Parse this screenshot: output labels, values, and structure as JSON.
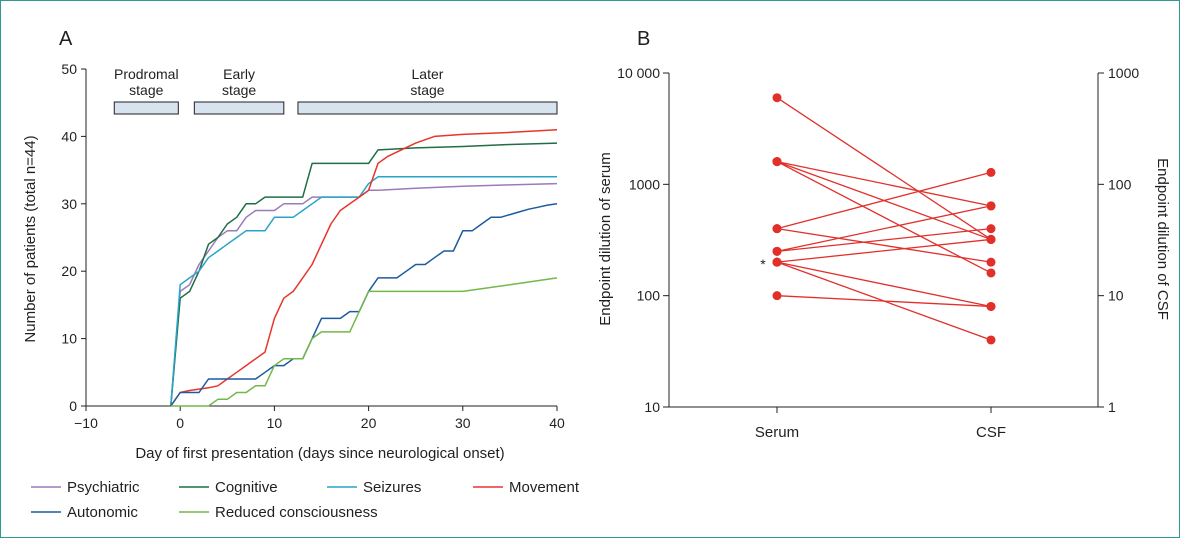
{
  "colors": {
    "Psychiatric": "#9b7bb8",
    "Cognitive": "#1f6e45",
    "Seizures": "#2aa3c9",
    "Movement": "#e8352b",
    "Autonomic": "#1d5a9e",
    "Reduced consciousness": "#72b84a",
    "stage_fill": "#d7e3ee",
    "panel_b_red": "#e1302a"
  },
  "chart_data": [
    {
      "panel": "A",
      "type": "line",
      "xlabel": "Day of first presentation (days since neurological onset)",
      "ylabel": "Number of patients (total n=44)",
      "xlim": [
        -10,
        40
      ],
      "ylim": [
        0,
        50
      ],
      "xticks": [
        -10,
        0,
        10,
        20,
        30,
        40
      ],
      "xtick_labels": [
        "−10",
        "0",
        "10",
        "20",
        "30",
        "40"
      ],
      "yticks": [
        0,
        10,
        20,
        30,
        40,
        50
      ],
      "stages": [
        {
          "label": "Prodromal stage",
          "lines": [
            "Prodromal",
            "stage"
          ],
          "x": [
            -7,
            -0.2
          ]
        },
        {
          "label": "Early stage",
          "lines": [
            "Early",
            "stage"
          ],
          "x": [
            1.5,
            11
          ]
        },
        {
          "label": "Later stage",
          "lines": [
            "Later",
            "stage"
          ],
          "x": [
            12.5,
            40
          ]
        }
      ],
      "legend": {
        "position": "bottom",
        "rows": [
          [
            "Psychiatric",
            "Cognitive",
            "Seizures",
            "Movement"
          ],
          [
            "Autonomic",
            "Reduced consciousness"
          ]
        ]
      },
      "series": [
        {
          "name": "Psychiatric",
          "x": [
            -1,
            0,
            1,
            2,
            3,
            4,
            5,
            6,
            7,
            8,
            9,
            10,
            11,
            12,
            13,
            14,
            15,
            16,
            17,
            18,
            19,
            20,
            21,
            25,
            30,
            35,
            40
          ],
          "y": [
            0,
            17,
            18,
            21,
            23,
            25,
            26,
            26,
            28,
            29,
            29,
            29,
            30,
            30,
            30,
            31,
            31,
            31,
            31,
            31,
            31,
            32,
            32,
            32.3,
            32.6,
            32.8,
            33
          ]
        },
        {
          "name": "Cognitive",
          "x": [
            -1,
            0,
            1,
            2,
            3,
            4,
            5,
            6,
            7,
            8,
            9,
            10,
            11,
            12,
            13,
            14,
            15,
            16,
            17,
            18,
            19,
            20,
            21,
            25,
            30,
            35,
            40
          ],
          "y": [
            0,
            16,
            17,
            20,
            24,
            25,
            27,
            28,
            30,
            30,
            31,
            31,
            31,
            31,
            31,
            36,
            36,
            36,
            36,
            36,
            36,
            36,
            38,
            38.3,
            38.5,
            38.8,
            39
          ]
        },
        {
          "name": "Seizures",
          "x": [
            -1,
            0,
            1,
            2,
            3,
            4,
            5,
            6,
            7,
            8,
            9,
            10,
            11,
            12,
            13,
            14,
            15,
            16,
            17,
            18,
            19,
            20,
            21,
            25,
            30,
            35,
            40
          ],
          "y": [
            0,
            18,
            19,
            20,
            22,
            23,
            24,
            25,
            26,
            26,
            26,
            28,
            28,
            28,
            29,
            30,
            31,
            31,
            31,
            31,
            31,
            33,
            34,
            34,
            34,
            34,
            34
          ]
        },
        {
          "name": "Movement",
          "x": [
            -1,
            0,
            1,
            2,
            3,
            4,
            5,
            6,
            7,
            8,
            9,
            10,
            11,
            12,
            13,
            14,
            15,
            16,
            17,
            18,
            19,
            20,
            21,
            22,
            25,
            27,
            30,
            35,
            40
          ],
          "y": [
            0,
            2,
            2.3,
            2.5,
            2.7,
            3,
            4,
            5,
            6,
            7,
            8,
            13,
            16,
            17,
            19,
            21,
            24,
            27,
            29,
            30,
            31,
            32,
            36,
            37,
            39,
            40,
            40.3,
            40.6,
            41
          ]
        },
        {
          "name": "Autonomic",
          "x": [
            -1,
            0,
            1,
            2,
            3,
            4,
            5,
            6,
            7,
            8,
            9,
            10,
            11,
            12,
            13,
            14,
            15,
            16,
            17,
            18,
            19,
            20,
            21,
            22,
            23,
            24,
            25,
            26,
            27,
            28,
            29,
            30,
            31,
            32,
            33,
            34,
            35,
            36,
            37,
            38,
            39,
            40
          ],
          "y": [
            0,
            2,
            2,
            2,
            4,
            4,
            4,
            4,
            4,
            4,
            5,
            6,
            6,
            7,
            7,
            10,
            13,
            13,
            13,
            14,
            14,
            17,
            19,
            19,
            19,
            20,
            21,
            21,
            22,
            23,
            23,
            26,
            26,
            27,
            28,
            28,
            28.4,
            28.8,
            29.2,
            29.5,
            29.8,
            30
          ]
        },
        {
          "name": "Reduced consciousness",
          "x": [
            -1,
            0,
            1,
            2,
            3,
            4,
            5,
            6,
            7,
            8,
            9,
            10,
            11,
            12,
            13,
            14,
            15,
            16,
            17,
            18,
            19,
            20,
            21,
            25,
            30,
            35,
            40
          ],
          "y": [
            0,
            0,
            0,
            0,
            0,
            1,
            1,
            2,
            2,
            3,
            3,
            6,
            7,
            7,
            7,
            10,
            11,
            11,
            11,
            11,
            14,
            17,
            17,
            17,
            17,
            18,
            19
          ]
        }
      ]
    },
    {
      "panel": "B",
      "type": "line",
      "categories": [
        "Serum",
        "CSF"
      ],
      "ylabel": "Endpoint dilution of serum",
      "y2label": "Endpoint dilution of CSF",
      "yscale": "log",
      "ylim": [
        10,
        10000
      ],
      "y2lim": [
        1,
        1000
      ],
      "yticks": [
        10,
        100,
        1000,
        10000
      ],
      "ytick_labels": [
        "10",
        "100",
        "1000",
        "10 000"
      ],
      "y2ticks": [
        1,
        10,
        100,
        1000
      ],
      "y2tick_labels": [
        "1",
        "10",
        "100",
        "1000"
      ],
      "annotation": "*",
      "pairs": [
        {
          "serum": 6000,
          "csf": 32
        },
        {
          "serum": 1600,
          "csf": 64
        },
        {
          "serum": 1600,
          "csf": 32
        },
        {
          "serum": 1600,
          "csf": 16
        },
        {
          "serum": 400,
          "csf": 128
        },
        {
          "serum": 400,
          "csf": 20
        },
        {
          "serum": 250,
          "csf": 64
        },
        {
          "serum": 250,
          "csf": 40
        },
        {
          "serum": 200,
          "csf": 32
        },
        {
          "serum": 200,
          "csf": 8
        },
        {
          "serum": 200,
          "csf": 4
        },
        {
          "serum": 100,
          "csf": 8
        }
      ]
    }
  ]
}
